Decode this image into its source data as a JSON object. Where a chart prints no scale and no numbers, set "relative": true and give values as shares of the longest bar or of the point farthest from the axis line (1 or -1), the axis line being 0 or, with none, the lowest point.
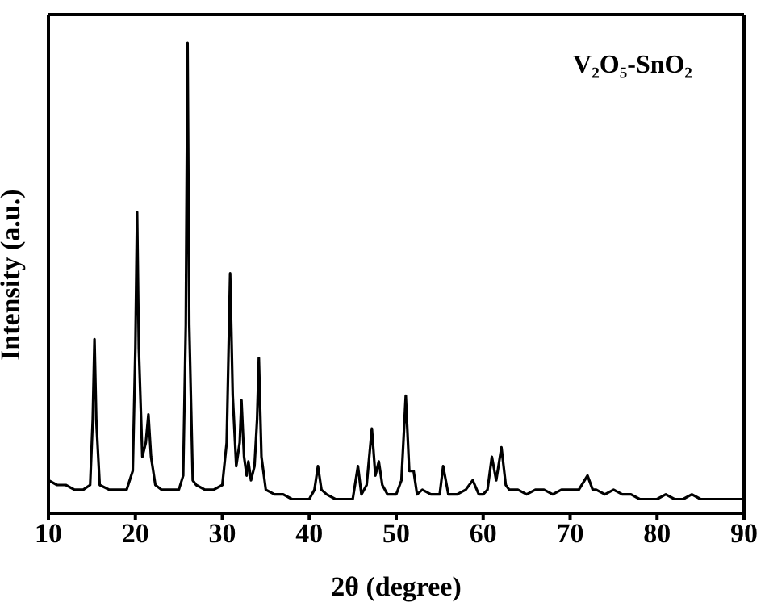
{
  "chart_data": {
    "type": "line",
    "title": "V₂O₅-SnO₂",
    "xlabel": "2θ (degree)",
    "ylabel": "Intensity (a.u.)",
    "relative": true,
    "xlim": [
      10,
      90
    ],
    "xticks": [
      10,
      20,
      30,
      40,
      50,
      60,
      70,
      80,
      90
    ],
    "marker": "none",
    "line_style": "solid",
    "series": [
      {
        "color": "#000000",
        "x": [
          10,
          11,
          12,
          13,
          14,
          14.8,
          15.1,
          15.3,
          15.5,
          15.9,
          17,
          18,
          19,
          19.7,
          20,
          20.2,
          20.4,
          20.8,
          21.2,
          21.5,
          21.8,
          22.3,
          23,
          24,
          25,
          25.5,
          25.8,
          26,
          26.2,
          26.6,
          27,
          28,
          29,
          30,
          30.5,
          30.9,
          31.2,
          31.6,
          32,
          32.2,
          32.5,
          32.8,
          33,
          33.3,
          33.7,
          34,
          34.2,
          34.5,
          35,
          36,
          37,
          38,
          39,
          40,
          40.6,
          41,
          41.4,
          42,
          43,
          44,
          45,
          45.6,
          46,
          46.6,
          47.2,
          47.6,
          48,
          48.4,
          49,
          50,
          50.6,
          51.1,
          51.5,
          52,
          52.4,
          53,
          54,
          55,
          55.4,
          56,
          57,
          58,
          58.8,
          59.5,
          60,
          60.5,
          61,
          61.5,
          62.1,
          62.6,
          63,
          64,
          65,
          66,
          67,
          68,
          69,
          70,
          71,
          72,
          72.6,
          73,
          74,
          75,
          76,
          77,
          78,
          79,
          80,
          81,
          82,
          83,
          84,
          85,
          86,
          87,
          88,
          89,
          90
        ],
        "values": [
          0.07,
          0.06,
          0.06,
          0.05,
          0.05,
          0.06,
          0.2,
          0.37,
          0.2,
          0.06,
          0.05,
          0.05,
          0.05,
          0.09,
          0.35,
          0.64,
          0.35,
          0.12,
          0.15,
          0.21,
          0.12,
          0.06,
          0.05,
          0.05,
          0.05,
          0.08,
          0.4,
          1,
          0.4,
          0.07,
          0.06,
          0.05,
          0.05,
          0.06,
          0.15,
          0.51,
          0.25,
          0.1,
          0.15,
          0.24,
          0.12,
          0.08,
          0.11,
          0.07,
          0.1,
          0.2,
          0.33,
          0.12,
          0.05,
          0.04,
          0.04,
          0.03,
          0.03,
          0.03,
          0.05,
          0.1,
          0.05,
          0.04,
          0.03,
          0.03,
          0.03,
          0.1,
          0.04,
          0.06,
          0.18,
          0.08,
          0.11,
          0.06,
          0.04,
          0.04,
          0.07,
          0.25,
          0.09,
          0.09,
          0.04,
          0.05,
          0.04,
          0.04,
          0.1,
          0.04,
          0.04,
          0.05,
          0.07,
          0.04,
          0.04,
          0.05,
          0.12,
          0.07,
          0.14,
          0.06,
          0.05,
          0.05,
          0.04,
          0.05,
          0.05,
          0.04,
          0.05,
          0.05,
          0.05,
          0.08,
          0.05,
          0.05,
          0.04,
          0.05,
          0.04,
          0.04,
          0.03,
          0.03,
          0.03,
          0.04,
          0.03,
          0.03,
          0.04,
          0.03,
          0.03,
          0.03,
          0.03,
          0.03,
          0.03
        ]
      }
    ]
  }
}
